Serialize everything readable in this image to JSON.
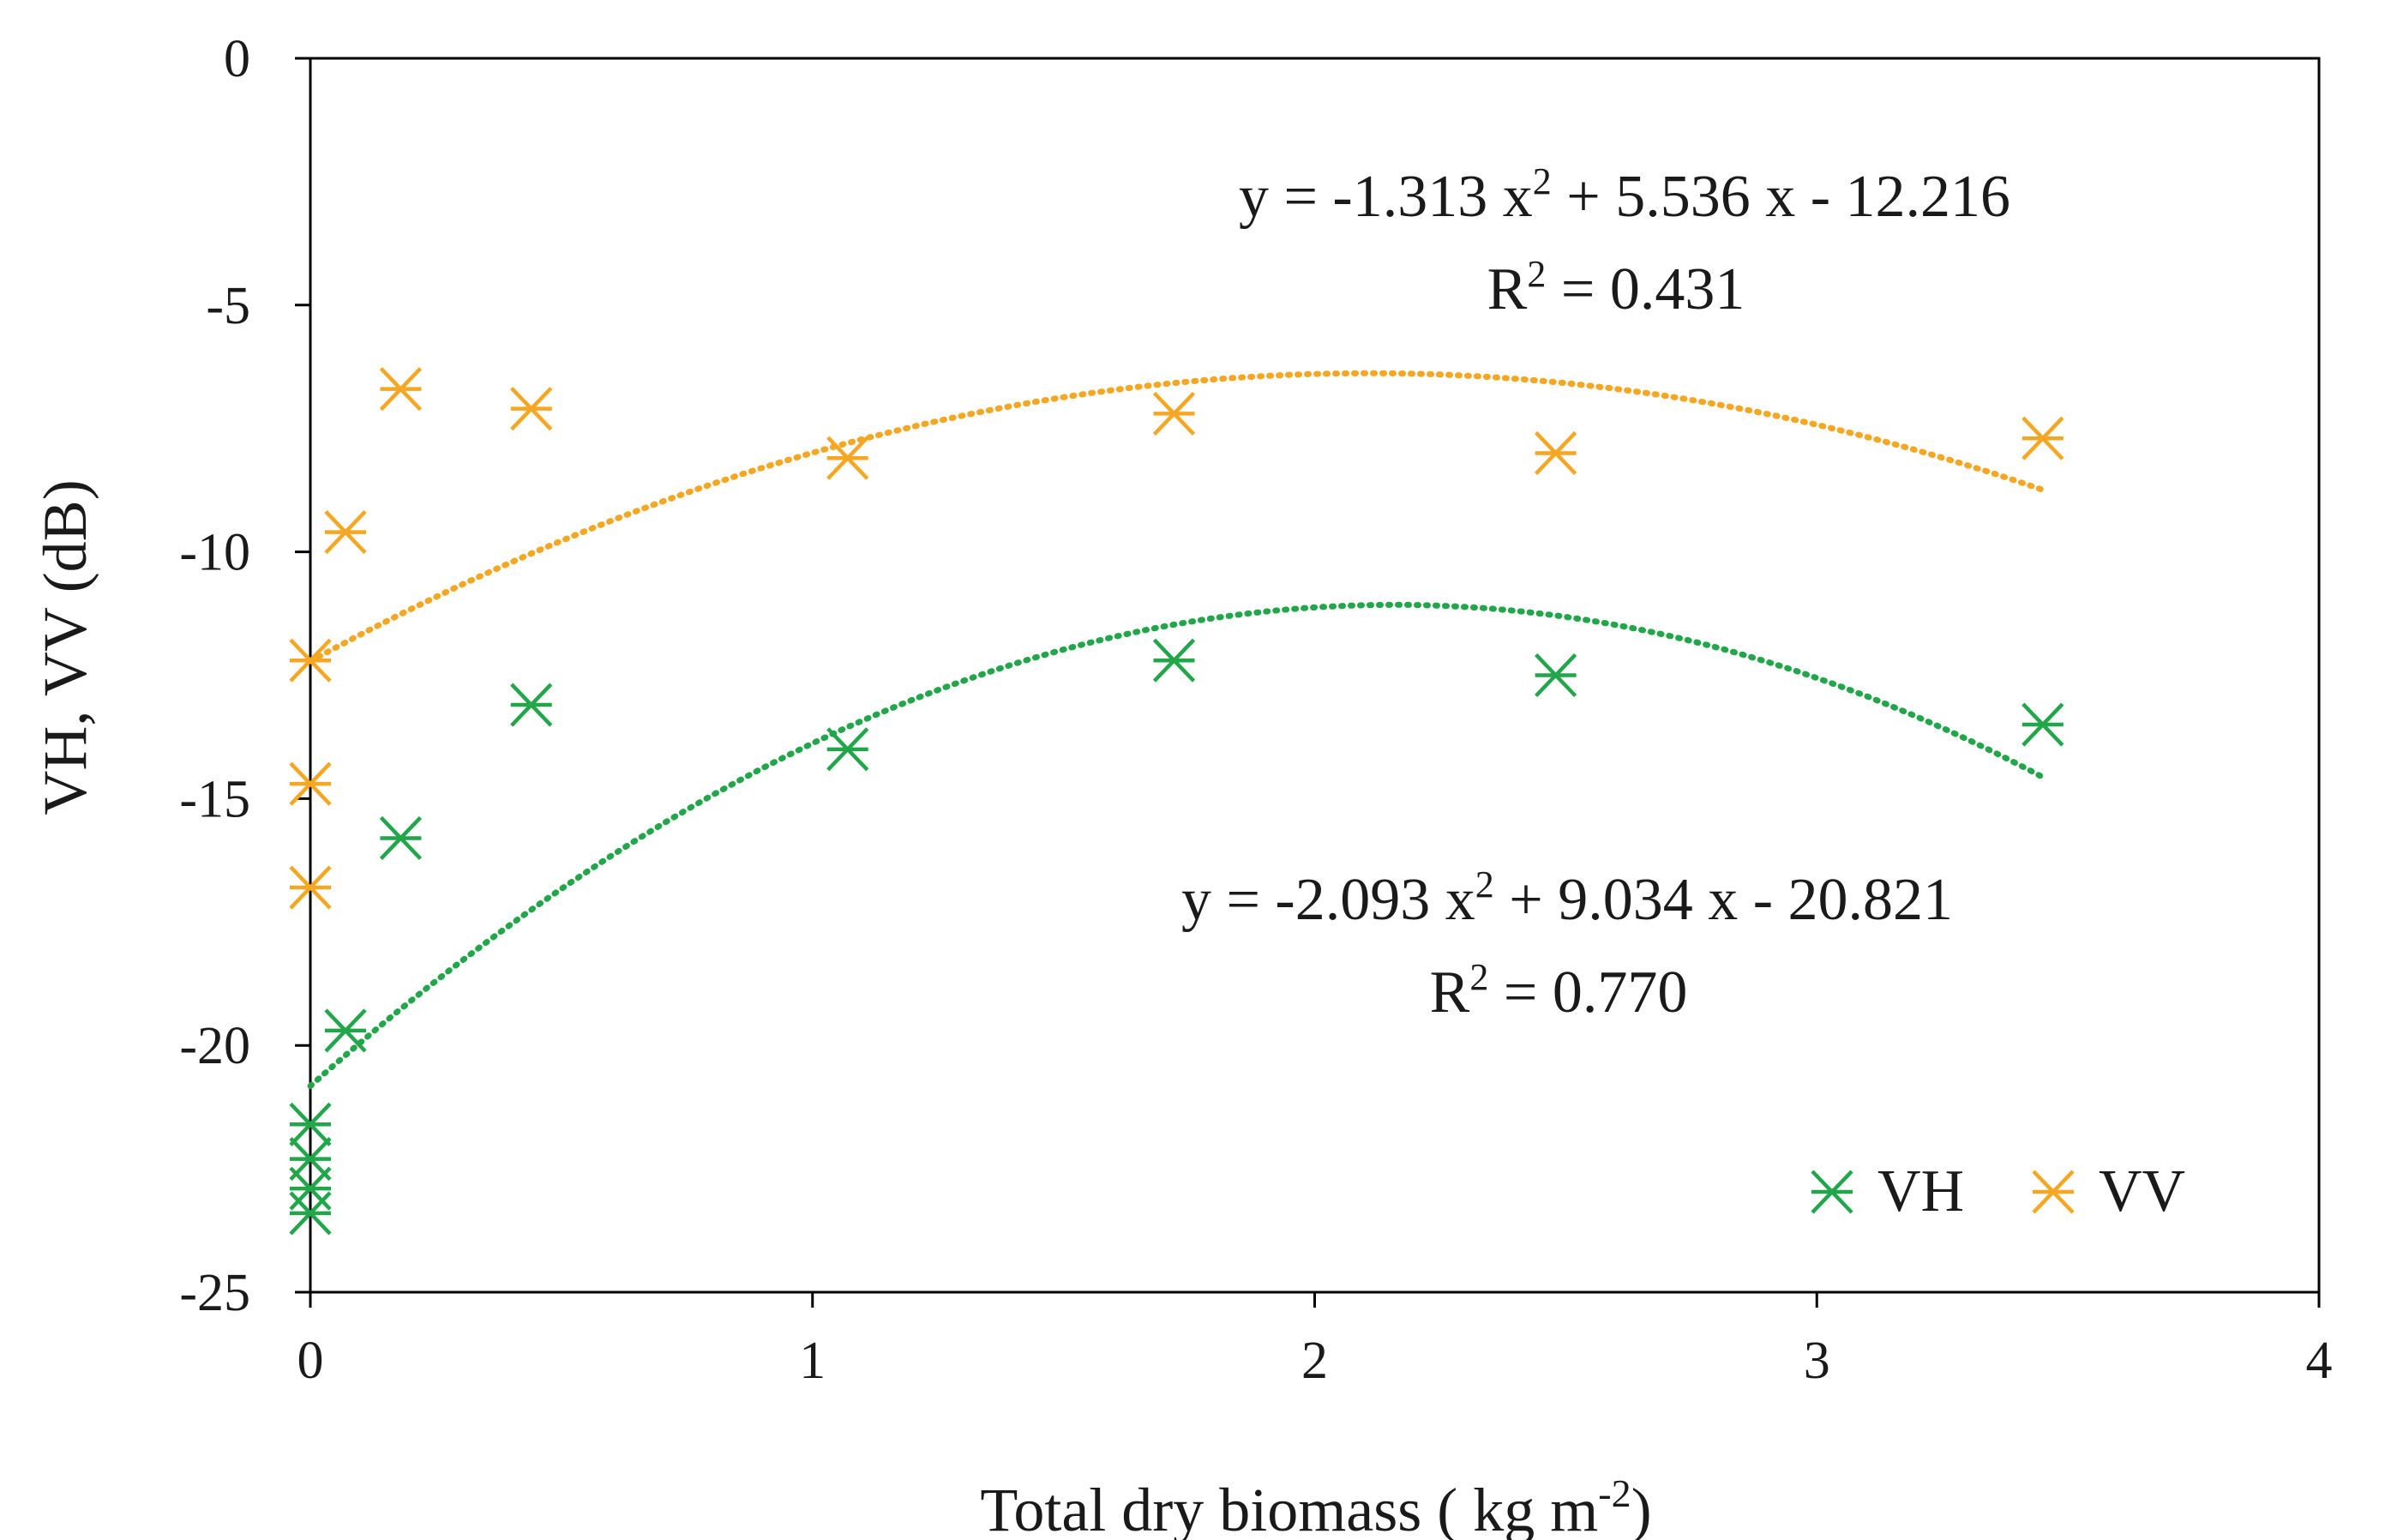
{
  "chart_data": {
    "type": "scatter",
    "title": "",
    "xlabel": "Total dry biomass ( kg m",
    "xlabel_sup": "-2",
    "xlabel_close": ")",
    "ylabel": "VH, VV (dB)",
    "xlim": [
      0,
      4
    ],
    "ylim": [
      -25,
      0
    ],
    "x_ticks": [
      0,
      1,
      2,
      3,
      4
    ],
    "y_ticks": [
      0,
      -5,
      -10,
      -15,
      -20,
      -25
    ],
    "x_tick_labels": [
      "0",
      "1",
      "2",
      "3",
      "4"
    ],
    "y_tick_labels": [
      "0",
      "-5",
      "-10",
      "-15",
      "-20",
      "-25"
    ],
    "grid": false,
    "legend_position": "bottom-right",
    "series": [
      {
        "name": "VH",
        "color": "#22a64a",
        "marker": "asterisk",
        "points": [
          {
            "x": 0.0,
            "y": -21.6
          },
          {
            "x": 0.0,
            "y": -22.3
          },
          {
            "x": 0.0,
            "y": -22.9
          },
          {
            "x": 0.0,
            "y": -23.4
          },
          {
            "x": 0.07,
            "y": -19.7
          },
          {
            "x": 0.18,
            "y": -15.8
          },
          {
            "x": 0.44,
            "y": -13.1
          },
          {
            "x": 1.07,
            "y": -14.0
          },
          {
            "x": 1.72,
            "y": -12.2
          },
          {
            "x": 2.48,
            "y": -12.5
          },
          {
            "x": 3.45,
            "y": -13.5
          }
        ],
        "trendline": {
          "type": "poly2",
          "coefficients": [
            -2.093,
            9.034,
            -20.821
          ],
          "x_range": [
            0,
            3.45
          ],
          "equation_parts": [
            "y = -2.093 x",
            "2",
            " + 9.034 x - 20.821"
          ],
          "r2_parts": [
            "R",
            "2",
            " = 0.770"
          ]
        }
      },
      {
        "name": "VV",
        "color": "#f5a623",
        "marker": "asterisk",
        "points": [
          {
            "x": 0.0,
            "y": -12.2
          },
          {
            "x": 0.0,
            "y": -14.7
          },
          {
            "x": 0.0,
            "y": -16.8
          },
          {
            "x": 0.07,
            "y": -9.6
          },
          {
            "x": 0.18,
            "y": -6.7
          },
          {
            "x": 0.44,
            "y": -7.1
          },
          {
            "x": 1.07,
            "y": -8.1
          },
          {
            "x": 1.72,
            "y": -7.2
          },
          {
            "x": 2.48,
            "y": -8.0
          },
          {
            "x": 3.45,
            "y": -7.7
          }
        ],
        "trendline": {
          "type": "poly2",
          "coefficients": [
            -1.313,
            5.536,
            -12.216
          ],
          "x_range": [
            0,
            3.45
          ],
          "equation_parts": [
            "y = -1.313 x",
            "2",
            " + 5.536 x - 12.216"
          ],
          "r2_parts": [
            "R",
            "2",
            " = 0.431"
          ]
        }
      }
    ]
  }
}
